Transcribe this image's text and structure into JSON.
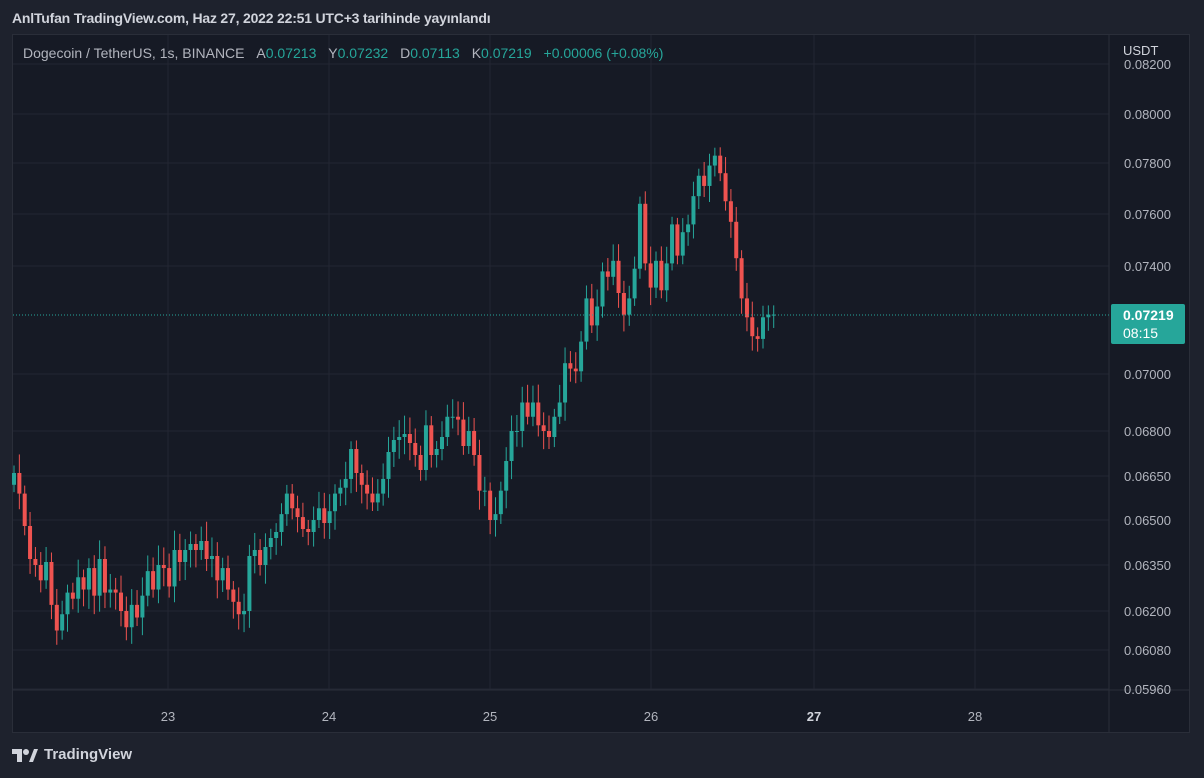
{
  "header": {
    "title": "AnlTufan TradingView.com, Haz 27, 2022 22:51 UTC+3 tarihinde yayınlandı"
  },
  "legend": {
    "symbol": "Dogecoin / TetherUS, 1s, BINANCE",
    "open_label": "A",
    "open_value": "0.07213",
    "high_label": "Y",
    "high_value": "0.07232",
    "low_label": "D",
    "low_value": "0.07113",
    "close_label": "K",
    "close_value": "0.07219",
    "change": "+0.00006 (+0.08%)"
  },
  "price_label": {
    "currency": "USDT",
    "last_price": "0.07219",
    "countdown": "08:15"
  },
  "brand": {
    "name": "TradingView"
  },
  "colors": {
    "up": "#26a69a",
    "down": "#ef5350",
    "background": "#161a25",
    "grid": "#232632",
    "axis_text": "#b2b5be"
  },
  "chart_data": {
    "type": "candlestick",
    "symbol": "DOGEUSDT",
    "timeframe": "1s",
    "x_tick_labels": [
      "23",
      "24",
      "25",
      "26",
      "27",
      "28"
    ],
    "bold_x_tick": "27",
    "y_tick_labels": [
      "0.08200",
      "0.08000",
      "0.07800",
      "0.07600",
      "0.07400",
      "0.07219",
      "0.07000",
      "0.06800",
      "0.06650",
      "0.06500",
      "0.06350",
      "0.06200",
      "0.06080",
      "0.05960"
    ],
    "y_scale": "log",
    "grid": true,
    "last_price": 0.07219,
    "closes": [
      0.0666,
      0.0659,
      0.0648,
      0.0637,
      0.0635,
      0.063,
      0.0636,
      0.0622,
      0.0614,
      0.0619,
      0.0626,
      0.0624,
      0.0631,
      0.0627,
      0.0634,
      0.0625,
      0.0637,
      0.0626,
      0.0627,
      0.0626,
      0.062,
      0.0615,
      0.0622,
      0.0618,
      0.0625,
      0.0633,
      0.0627,
      0.0635,
      0.0634,
      0.0628,
      0.064,
      0.0636,
      0.064,
      0.0642,
      0.064,
      0.0643,
      0.0637,
      0.0638,
      0.063,
      0.0634,
      0.0627,
      0.0623,
      0.0619,
      0.062,
      0.0638,
      0.064,
      0.0635,
      0.0641,
      0.0644,
      0.0646,
      0.0652,
      0.0659,
      0.0654,
      0.0651,
      0.0647,
      0.0646,
      0.065,
      0.0654,
      0.0649,
      0.0653,
      0.0659,
      0.0661,
      0.0664,
      0.0674,
      0.0666,
      0.0662,
      0.0659,
      0.0656,
      0.0659,
      0.0664,
      0.0673,
      0.0677,
      0.0678,
      0.0679,
      0.0676,
      0.0672,
      0.0667,
      0.0682,
      0.0672,
      0.0674,
      0.0678,
      0.0685,
      0.0685,
      0.0684,
      0.0675,
      0.068,
      0.0672,
      0.066,
      0.066,
      0.065,
      0.0652,
      0.066,
      0.067,
      0.068,
      0.068,
      0.069,
      0.0685,
      0.069,
      0.0682,
      0.068,
      0.0678,
      0.0685,
      0.069,
      0.0704,
      0.0702,
      0.0701,
      0.0712,
      0.0728,
      0.0718,
      0.0725,
      0.0738,
      0.0736,
      0.0742,
      0.073,
      0.0722,
      0.0728,
      0.0739,
      0.0764,
      0.0741,
      0.0732,
      0.0742,
      0.0731,
      0.0741,
      0.0756,
      0.0744,
      0.0753,
      0.0756,
      0.0767,
      0.0775,
      0.0771,
      0.0779,
      0.0783,
      0.0776,
      0.0765,
      0.0757,
      0.0743,
      0.0728,
      0.0721,
      0.0714,
      0.0713,
      0.0721,
      0.0722,
      0.0722
    ]
  }
}
